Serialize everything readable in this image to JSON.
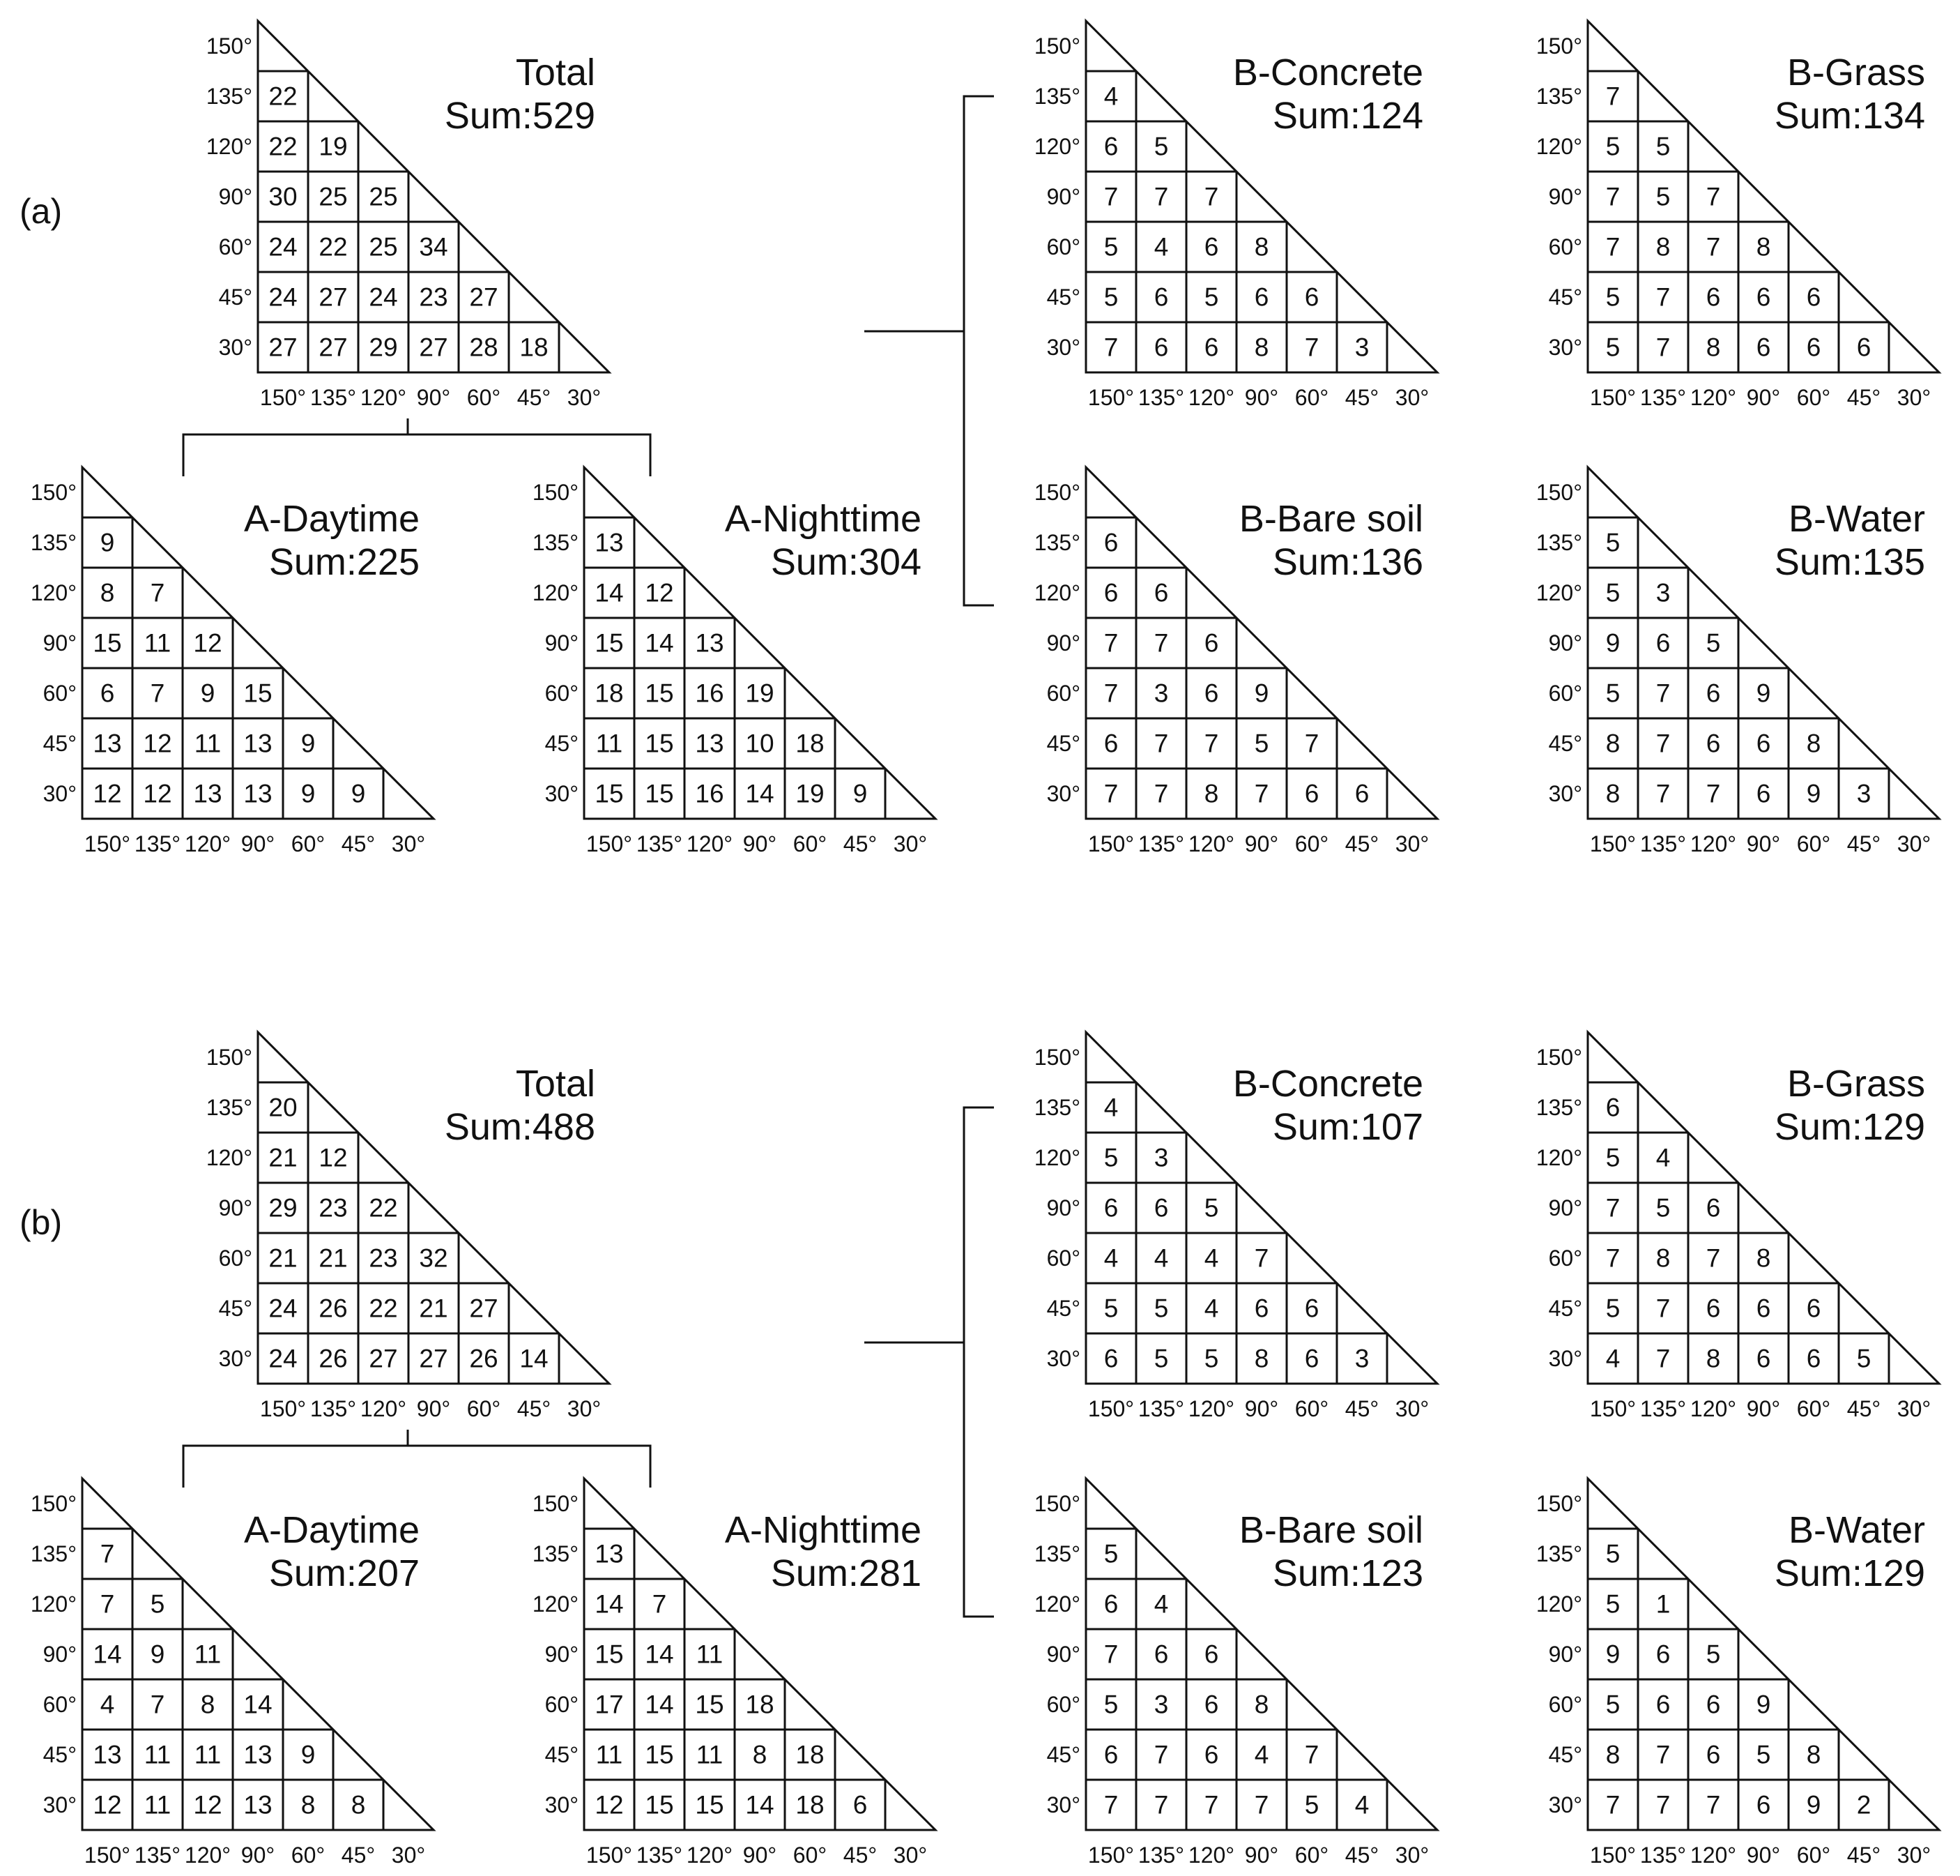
{
  "axis_labels": [
    "150°",
    "135°",
    "120°",
    "90°",
    "60°",
    "45°",
    "30°"
  ],
  "panels": [
    {
      "label": "(a)",
      "diagrams": [
        {
          "id": "total",
          "title": "Total",
          "sum": "Sum:529",
          "rows": [
            [
              22
            ],
            [
              22,
              19
            ],
            [
              30,
              25,
              25
            ],
            [
              24,
              22,
              25,
              34
            ],
            [
              24,
              27,
              24,
              23,
              27
            ],
            [
              27,
              27,
              29,
              27,
              28,
              18
            ]
          ]
        },
        {
          "id": "a-daytime",
          "title": "A-Daytime",
          "sum": "Sum:225",
          "rows": [
            [
              9
            ],
            [
              8,
              7
            ],
            [
              15,
              11,
              12
            ],
            [
              6,
              7,
              9,
              15
            ],
            [
              13,
              12,
              11,
              13,
              9
            ],
            [
              12,
              12,
              13,
              13,
              9,
              9
            ]
          ]
        },
        {
          "id": "a-nighttime",
          "title": "A-Nighttime",
          "sum": "Sum:304",
          "rows": [
            [
              13
            ],
            [
              14,
              12
            ],
            [
              15,
              14,
              13
            ],
            [
              18,
              15,
              16,
              19
            ],
            [
              11,
              15,
              13,
              10,
              18
            ],
            [
              15,
              15,
              16,
              14,
              19,
              9
            ]
          ]
        },
        {
          "id": "b-concrete",
          "title": "B-Concrete",
          "sum": "Sum:124",
          "rows": [
            [
              4
            ],
            [
              6,
              5
            ],
            [
              7,
              7,
              7
            ],
            [
              5,
              4,
              6,
              8
            ],
            [
              5,
              6,
              5,
              6,
              6
            ],
            [
              7,
              6,
              6,
              8,
              7,
              3
            ]
          ]
        },
        {
          "id": "b-grass",
          "title": "B-Grass",
          "sum": "Sum:134",
          "rows": [
            [
              7
            ],
            [
              5,
              5
            ],
            [
              7,
              5,
              7
            ],
            [
              7,
              8,
              7,
              8
            ],
            [
              5,
              7,
              6,
              6,
              6
            ],
            [
              5,
              7,
              8,
              6,
              6,
              6
            ]
          ]
        },
        {
          "id": "b-bare-soil",
          "title": "B-Bare soil",
          "sum": "Sum:136",
          "rows": [
            [
              6
            ],
            [
              6,
              6
            ],
            [
              7,
              7,
              6
            ],
            [
              7,
              3,
              6,
              9
            ],
            [
              6,
              7,
              7,
              5,
              7
            ],
            [
              7,
              7,
              8,
              7,
              6,
              6
            ]
          ]
        },
        {
          "id": "b-water",
          "title": "B-Water",
          "sum": "Sum:135",
          "rows": [
            [
              5
            ],
            [
              5,
              3
            ],
            [
              9,
              6,
              5
            ],
            [
              5,
              7,
              6,
              9
            ],
            [
              8,
              7,
              6,
              6,
              8
            ],
            [
              8,
              7,
              7,
              6,
              9,
              3
            ]
          ]
        }
      ]
    },
    {
      "label": "(b)",
      "diagrams": [
        {
          "id": "total",
          "title": "Total",
          "sum": "Sum:488",
          "rows": [
            [
              20
            ],
            [
              21,
              12
            ],
            [
              29,
              23,
              22
            ],
            [
              21,
              21,
              23,
              32
            ],
            [
              24,
              26,
              22,
              21,
              27
            ],
            [
              24,
              26,
              27,
              27,
              26,
              14
            ]
          ]
        },
        {
          "id": "a-daytime",
          "title": "A-Daytime",
          "sum": "Sum:207",
          "rows": [
            [
              7
            ],
            [
              7,
              5
            ],
            [
              14,
              9,
              11
            ],
            [
              4,
              7,
              8,
              14
            ],
            [
              13,
              11,
              11,
              13,
              9
            ],
            [
              12,
              11,
              12,
              13,
              8,
              8
            ]
          ]
        },
        {
          "id": "a-nighttime",
          "title": "A-Nighttime",
          "sum": "Sum:281",
          "rows": [
            [
              13
            ],
            [
              14,
              7
            ],
            [
              15,
              14,
              11
            ],
            [
              17,
              14,
              15,
              18
            ],
            [
              11,
              15,
              11,
              8,
              18
            ],
            [
              12,
              15,
              15,
              14,
              18,
              6
            ]
          ]
        },
        {
          "id": "b-concrete",
          "title": "B-Concrete",
          "sum": "Sum:107",
          "rows": [
            [
              4
            ],
            [
              5,
              3
            ],
            [
              6,
              6,
              5
            ],
            [
              4,
              4,
              4,
              7
            ],
            [
              5,
              5,
              4,
              6,
              6
            ],
            [
              6,
              5,
              5,
              8,
              6,
              3
            ]
          ]
        },
        {
          "id": "b-grass",
          "title": "B-Grass",
          "sum": "Sum:129",
          "rows": [
            [
              6
            ],
            [
              5,
              4
            ],
            [
              7,
              5,
              6
            ],
            [
              7,
              8,
              7,
              8
            ],
            [
              5,
              7,
              6,
              6,
              6
            ],
            [
              4,
              7,
              8,
              6,
              6,
              5
            ]
          ]
        },
        {
          "id": "b-bare-soil",
          "title": "B-Bare soil",
          "sum": "Sum:123",
          "rows": [
            [
              5
            ],
            [
              6,
              4
            ],
            [
              7,
              6,
              6
            ],
            [
              5,
              3,
              6,
              8
            ],
            [
              6,
              7,
              6,
              4,
              7
            ],
            [
              7,
              7,
              7,
              7,
              5,
              4
            ]
          ]
        },
        {
          "id": "b-water",
          "title": "B-Water",
          "sum": "Sum:129",
          "rows": [
            [
              5
            ],
            [
              5,
              1
            ],
            [
              9,
              6,
              5
            ],
            [
              5,
              6,
              6,
              9
            ],
            [
              8,
              7,
              6,
              5,
              8
            ],
            [
              7,
              7,
              7,
              6,
              9,
              2
            ]
          ]
        }
      ]
    }
  ]
}
